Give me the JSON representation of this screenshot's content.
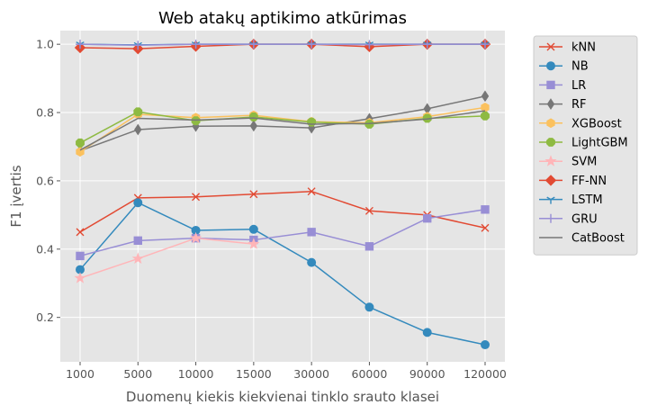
{
  "chart_data": {
    "type": "line",
    "title": "Web atakų aptikimo atkūrimas",
    "xlabel": "Duomenų kiekis kiekvienai tinklo srauto klasei",
    "ylabel": "F1 įvertis",
    "categories": [
      "1000",
      "5000",
      "10000",
      "15000",
      "30000",
      "60000",
      "90000",
      "120000"
    ],
    "ylim": [
      0.07,
      1.04
    ],
    "yticks": [
      "0.2",
      "0.4",
      "0.6",
      "0.8",
      "1.0"
    ],
    "grid": true,
    "legend_position": "outside-right",
    "series": [
      {
        "name": "kNN",
        "color": "#e24a33",
        "marker": "x",
        "values": [
          0.45,
          0.55,
          0.553,
          0.561,
          0.569,
          0.512,
          0.5,
          0.462
        ]
      },
      {
        "name": "NB",
        "color": "#348abd",
        "marker": "circle",
        "values": [
          0.34,
          0.536,
          0.455,
          0.458,
          0.361,
          0.23,
          0.156,
          0.12
        ]
      },
      {
        "name": "LR",
        "color": "#988ed5",
        "marker": "square",
        "values": [
          0.38,
          0.425,
          0.432,
          0.427,
          0.45,
          0.408,
          0.49,
          0.516
        ]
      },
      {
        "name": "RF",
        "color": "#777777",
        "marker": "thin_diamond",
        "values": [
          0.688,
          0.75,
          0.76,
          0.761,
          0.755,
          0.782,
          0.811,
          0.848
        ]
      },
      {
        "name": "XGBoost",
        "color": "#fbc15e",
        "marker": "hexagon",
        "values": [
          0.685,
          0.795,
          0.785,
          0.792,
          0.773,
          0.77,
          0.788,
          0.815
        ]
      },
      {
        "name": "LightGBM",
        "color": "#8eba42",
        "marker": "octagon",
        "values": [
          0.711,
          0.802,
          0.776,
          0.787,
          0.772,
          0.766,
          0.783,
          0.79
        ]
      },
      {
        "name": "SVM",
        "color": "#ffb5b8",
        "marker": "star",
        "values": [
          0.315,
          0.372,
          0.432,
          0.415,
          null,
          null,
          null,
          null
        ]
      },
      {
        "name": "FF-NN",
        "color": "#e24a33",
        "marker": "diamond",
        "values": [
          0.99,
          0.987,
          0.994,
          1.0,
          1.0,
          0.993,
          1.0,
          1.0
        ]
      },
      {
        "name": "LSTM",
        "color": "#348abd",
        "marker": "tri_down",
        "values": [
          1.0,
          0.998,
          1.0,
          1.0,
          1.0,
          1.0,
          1.0,
          1.0
        ]
      },
      {
        "name": "GRU",
        "color": "#988ed5",
        "marker": "plus",
        "values": [
          1.0,
          0.997,
          1.0,
          1.0,
          1.0,
          0.999,
          1.0,
          1.0
        ]
      },
      {
        "name": "CatBoost",
        "color": "#777777",
        "marker": "none",
        "values": [
          0.69,
          0.783,
          0.778,
          0.784,
          0.766,
          0.768,
          0.781,
          0.805
        ]
      }
    ]
  }
}
